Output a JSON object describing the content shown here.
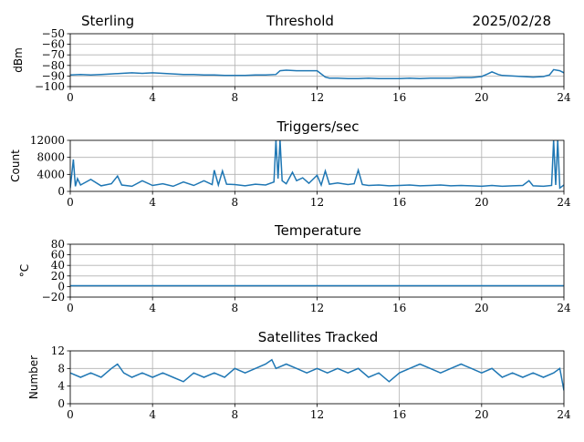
{
  "header": {
    "left": "Sterling",
    "center": "Threshold",
    "right": "2025/02/28"
  },
  "line_color": "#1f77b4",
  "grid_color": "#b0b0b0",
  "chart_data": [
    {
      "type": "line",
      "title": "",
      "xlabel": "",
      "ylabel": "dBm",
      "xlim": [
        0,
        24
      ],
      "ylim": [
        -100,
        -50
      ],
      "xticks": [
        "0",
        "4",
        "8",
        "12",
        "16",
        "20",
        "24"
      ],
      "yticks": [
        "−100",
        "−90",
        "−80",
        "−70",
        "−60",
        "−50"
      ],
      "ytick_values": [
        -100,
        -90,
        -80,
        -70,
        -60,
        -50
      ],
      "grid": true,
      "series": [
        {
          "x": [
            0,
            0.5,
            1,
            1.5,
            2,
            2.5,
            3,
            3.5,
            4,
            4.5,
            5,
            5.5,
            6,
            6.5,
            7,
            7.5,
            8,
            8.5,
            9,
            9.5,
            10,
            10.2,
            10.5,
            11,
            11.5,
            12,
            12.4,
            12.6,
            13,
            13.5,
            14,
            14.5,
            15,
            15.5,
            16,
            16.5,
            17,
            17.5,
            18,
            18.5,
            19,
            19.5,
            20,
            20.3,
            20.5,
            20.8,
            21,
            21.5,
            22,
            22.5,
            23,
            23.3,
            23.5,
            23.8,
            24
          ],
          "y": [
            -89,
            -88.5,
            -89,
            -88.5,
            -88,
            -87.5,
            -87,
            -87.5,
            -87,
            -87.5,
            -88,
            -88.5,
            -88.5,
            -89,
            -89,
            -89.5,
            -89.5,
            -89.5,
            -89,
            -89,
            -88.5,
            -85,
            -84.5,
            -85,
            -85,
            -85,
            -91,
            -92,
            -92,
            -92.5,
            -92.5,
            -92,
            -92.5,
            -92.5,
            -92.5,
            -92,
            -92.5,
            -92,
            -92,
            -92,
            -91.5,
            -91.5,
            -90.5,
            -88,
            -86,
            -88.5,
            -89.5,
            -90,
            -90.5,
            -91,
            -90.5,
            -89,
            -84,
            -85,
            -87
          ]
        }
      ]
    },
    {
      "type": "line",
      "title": "Triggers/sec",
      "xlabel": "",
      "ylabel": "Count",
      "xlim": [
        0,
        24
      ],
      "ylim": [
        0,
        12000
      ],
      "xticks": [
        "0",
        "4",
        "8",
        "12",
        "16",
        "20",
        "24"
      ],
      "yticks": [
        "0",
        "4000",
        "8000",
        "12000"
      ],
      "ytick_values": [
        0,
        4000,
        8000,
        12000
      ],
      "grid": true,
      "series": [
        {
          "x": [
            0,
            0.15,
            0.25,
            0.35,
            0.5,
            1,
            1.5,
            2,
            2.3,
            2.5,
            3,
            3.5,
            4,
            4.5,
            5,
            5.5,
            6,
            6.5,
            6.9,
            7,
            7.2,
            7.4,
            7.6,
            8,
            8.5,
            9,
            9.5,
            9.9,
            10.0,
            10.1,
            10.2,
            10.3,
            10.5,
            10.8,
            11,
            11.3,
            11.6,
            12,
            12.2,
            12.4,
            12.6,
            13,
            13.5,
            13.8,
            14,
            14.2,
            14.5,
            15,
            15.5,
            16,
            16.5,
            17,
            17.5,
            18,
            18.5,
            19,
            19.5,
            20,
            20.5,
            21,
            21.5,
            22,
            22.3,
            22.5,
            23,
            23.4,
            23.5,
            23.6,
            23.7,
            23.8,
            24
          ],
          "y": [
            800,
            7500,
            1200,
            3000,
            1500,
            2800,
            1300,
            1800,
            3600,
            1500,
            1200,
            2500,
            1400,
            1800,
            1200,
            2200,
            1400,
            2500,
            1600,
            5000,
            1500,
            4800,
            1700,
            1600,
            1300,
            1700,
            1500,
            2200,
            12000,
            3000,
            12000,
            2500,
            1800,
            4500,
            2500,
            3200,
            1900,
            3800,
            1500,
            4800,
            1700,
            2000,
            1600,
            1800,
            5000,
            1600,
            1400,
            1500,
            1300,
            1400,
            1500,
            1300,
            1400,
            1500,
            1300,
            1400,
            1300,
            1200,
            1400,
            1200,
            1300,
            1400,
            2500,
            1300,
            1200,
            1400,
            12000,
            1500,
            12000,
            800,
            1500
          ]
        }
      ]
    },
    {
      "type": "line",
      "title": "Temperature",
      "xlabel": "",
      "ylabel": "°C",
      "xlim": [
        0,
        24
      ],
      "ylim": [
        -20,
        80
      ],
      "xticks": [
        "0",
        "4",
        "8",
        "12",
        "16",
        "20",
        "24"
      ],
      "yticks": [
        "−20",
        "0",
        "20",
        "40",
        "60",
        "80"
      ],
      "ytick_values": [
        -20,
        0,
        20,
        40,
        60,
        80
      ],
      "grid": true,
      "series": [
        {
          "x": [
            0,
            24
          ],
          "y": [
            1.5,
            1.5
          ]
        }
      ]
    },
    {
      "type": "line",
      "title": "Satellites Tracked",
      "xlabel": "",
      "ylabel": "Number",
      "xlim": [
        0,
        24
      ],
      "ylim": [
        0,
        12
      ],
      "xticks": [
        "0",
        "4",
        "8",
        "12",
        "16",
        "20",
        "24"
      ],
      "yticks": [
        "0",
        "4",
        "8",
        "12"
      ],
      "ytick_values": [
        0,
        4,
        8,
        12
      ],
      "grid": true,
      "series": [
        {
          "x": [
            0,
            0.5,
            1,
            1.5,
            2,
            2.3,
            2.6,
            3,
            3.5,
            4,
            4.5,
            5,
            5.5,
            6,
            6.5,
            7,
            7.5,
            8,
            8.5,
            9,
            9.5,
            9.8,
            10,
            10.5,
            11,
            11.5,
            12,
            12.5,
            13,
            13.5,
            14,
            14.5,
            15,
            15.5,
            16,
            16.5,
            17,
            17.5,
            18,
            18.5,
            19,
            19.5,
            20,
            20.5,
            21,
            21.5,
            22,
            22.5,
            23,
            23.5,
            23.8,
            24
          ],
          "y": [
            7,
            6,
            7,
            6,
            8,
            9,
            7,
            6,
            7,
            6,
            7,
            6,
            5,
            7,
            6,
            7,
            6,
            8,
            7,
            8,
            9,
            10,
            8,
            9,
            8,
            7,
            8,
            7,
            8,
            7,
            8,
            6,
            7,
            5,
            7,
            8,
            9,
            8,
            7,
            8,
            9,
            8,
            7,
            8,
            6,
            7,
            6,
            7,
            6,
            7,
            8,
            3
          ]
        }
      ]
    }
  ]
}
